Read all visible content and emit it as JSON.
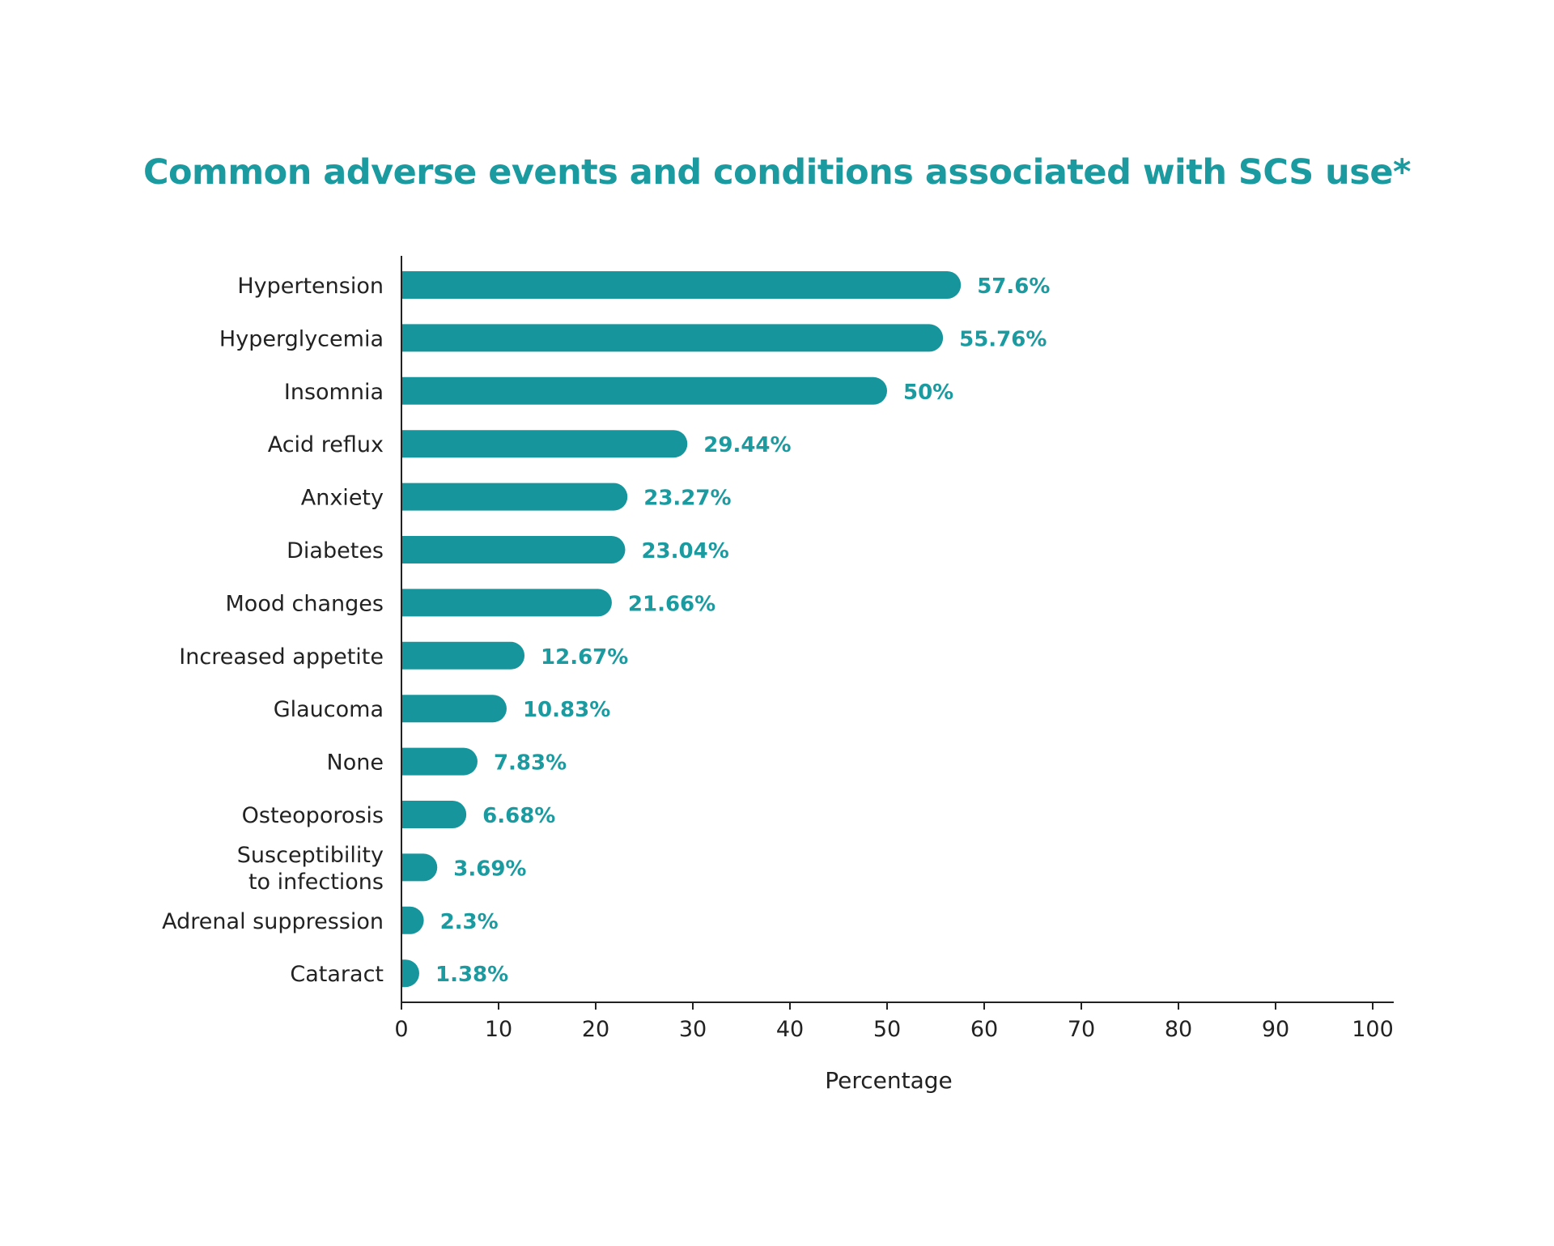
{
  "chart_data": {
    "type": "bar",
    "orientation": "horizontal",
    "title": "Common adverse events and conditions associated with SCS use*",
    "xlabel": "Percentage",
    "ylabel": "",
    "xlim": [
      0,
      100
    ],
    "x_ticks": [
      0,
      10,
      20,
      30,
      40,
      50,
      60,
      70,
      80,
      90,
      100
    ],
    "grid": false,
    "legend": "none",
    "bar_color": "#16959c",
    "label_color": "#1b9aa0",
    "categories": [
      [
        "Hypertension"
      ],
      [
        "Hyperglycemia"
      ],
      [
        "Insomnia"
      ],
      [
        "Acid reflux"
      ],
      [
        "Anxiety"
      ],
      [
        "Diabetes"
      ],
      [
        "Mood changes"
      ],
      [
        "Increased appetite"
      ],
      [
        "Glaucoma"
      ],
      [
        "None"
      ],
      [
        "Osteoporosis"
      ],
      [
        "Susceptibility",
        "to infections"
      ],
      [
        "Adrenal suppression"
      ],
      [
        "Cataract"
      ]
    ],
    "values": [
      57.6,
      55.76,
      50,
      29.44,
      23.27,
      23.04,
      21.66,
      12.67,
      10.83,
      7.83,
      6.68,
      3.69,
      2.3,
      1.38
    ],
    "value_labels": [
      "57.6%",
      "55.76%",
      "50%",
      "29.44%",
      "23.27%",
      "23.04%",
      "21.66%",
      "12.67%",
      "10.83%",
      "7.83%",
      "6.68%",
      "3.69%",
      "2.3%",
      "1.38%"
    ]
  }
}
